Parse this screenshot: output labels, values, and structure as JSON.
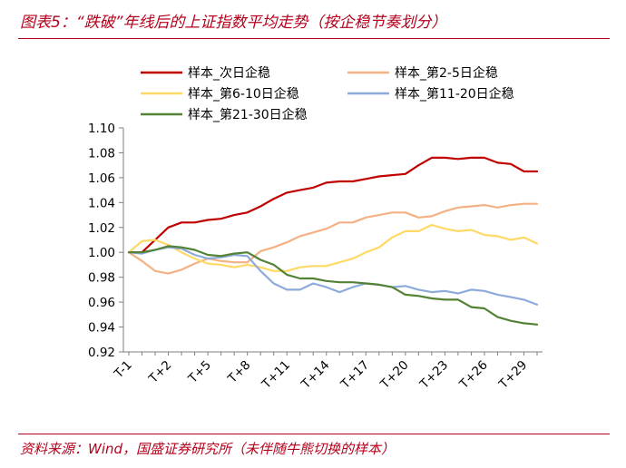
{
  "header": {
    "title": "图表5：“跌破”年线后的上证指数平均走势（按企稳节奏划分）"
  },
  "footer": {
    "source": "资料来源：Wind，国盛证券研究所（未伴随牛熊切换的样本）"
  },
  "colors": {
    "accent": "#b5001b"
  },
  "chart_data": {
    "type": "line",
    "xlabel": "",
    "ylabel": "",
    "ylim": [
      0.92,
      1.1
    ],
    "yticks": [
      "0.92",
      "0.94",
      "0.96",
      "0.98",
      "1.00",
      "1.02",
      "1.04",
      "1.06",
      "1.08",
      "1.10"
    ],
    "x": [
      "T-1",
      "T+0",
      "T+1",
      "T+2",
      "T+3",
      "T+4",
      "T+5",
      "T+6",
      "T+7",
      "T+8",
      "T+9",
      "T+10",
      "T+11",
      "T+12",
      "T+13",
      "T+14",
      "T+15",
      "T+16",
      "T+17",
      "T+18",
      "T+19",
      "T+20",
      "T+21",
      "T+22",
      "T+23",
      "T+24",
      "T+25",
      "T+26",
      "T+27",
      "T+28",
      "T+29",
      "T+30"
    ],
    "xtick_labels": [
      "T-1",
      "T+2",
      "T+5",
      "T+8",
      "T+11",
      "T+14",
      "T+17",
      "T+20",
      "T+23",
      "T+26",
      "T+29"
    ],
    "grid": false,
    "legend_placement": "top",
    "series": [
      {
        "name": "样本_次日企稳",
        "color": "#c00000",
        "values": [
          1.0,
          1.0,
          1.01,
          1.02,
          1.024,
          1.024,
          1.026,
          1.027,
          1.03,
          1.032,
          1.037,
          1.043,
          1.048,
          1.05,
          1.052,
          1.056,
          1.057,
          1.057,
          1.059,
          1.061,
          1.062,
          1.063,
          1.07,
          1.076,
          1.076,
          1.075,
          1.076,
          1.076,
          1.072,
          1.071,
          1.065,
          1.065
        ]
      },
      {
        "name": "样本_第2-5日企稳",
        "color": "#f4b183",
        "values": [
          1.0,
          0.993,
          0.985,
          0.983,
          0.986,
          0.991,
          0.995,
          0.993,
          0.992,
          0.992,
          1.001,
          1.004,
          1.008,
          1.013,
          1.016,
          1.019,
          1.024,
          1.024,
          1.028,
          1.03,
          1.032,
          1.032,
          1.028,
          1.029,
          1.033,
          1.036,
          1.037,
          1.038,
          1.036,
          1.038,
          1.039,
          1.039
        ]
      },
      {
        "name": "样本_第6-10日企稳",
        "color": "#ffd966",
        "values": [
          1.0,
          1.009,
          1.01,
          1.006,
          1.0,
          0.995,
          0.991,
          0.99,
          0.988,
          0.99,
          0.988,
          0.985,
          0.985,
          0.988,
          0.989,
          0.989,
          0.992,
          0.995,
          1.0,
          1.004,
          1.012,
          1.017,
          1.017,
          1.022,
          1.019,
          1.017,
          1.018,
          1.014,
          1.013,
          1.01,
          1.012,
          1.007
        ]
      },
      {
        "name": "样本_第11-20日企稳",
        "color": "#8eaadb",
        "values": [
          1.0,
          0.999,
          1.002,
          1.004,
          1.003,
          0.998,
          0.995,
          0.996,
          0.998,
          0.997,
          0.985,
          0.975,
          0.97,
          0.97,
          0.975,
          0.972,
          0.968,
          0.972,
          0.975,
          0.974,
          0.972,
          0.973,
          0.97,
          0.968,
          0.969,
          0.967,
          0.97,
          0.969,
          0.966,
          0.964,
          0.962,
          0.958
        ]
      },
      {
        "name": "样本_第21-30日企稳",
        "color": "#548235",
        "values": [
          1.0,
          1.0,
          1.002,
          1.005,
          1.004,
          1.002,
          0.998,
          0.997,
          0.999,
          1.0,
          0.994,
          0.99,
          0.982,
          0.979,
          0.979,
          0.977,
          0.976,
          0.976,
          0.975,
          0.974,
          0.972,
          0.966,
          0.965,
          0.963,
          0.962,
          0.962,
          0.956,
          0.955,
          0.948,
          0.945,
          0.943,
          0.942
        ]
      }
    ]
  }
}
